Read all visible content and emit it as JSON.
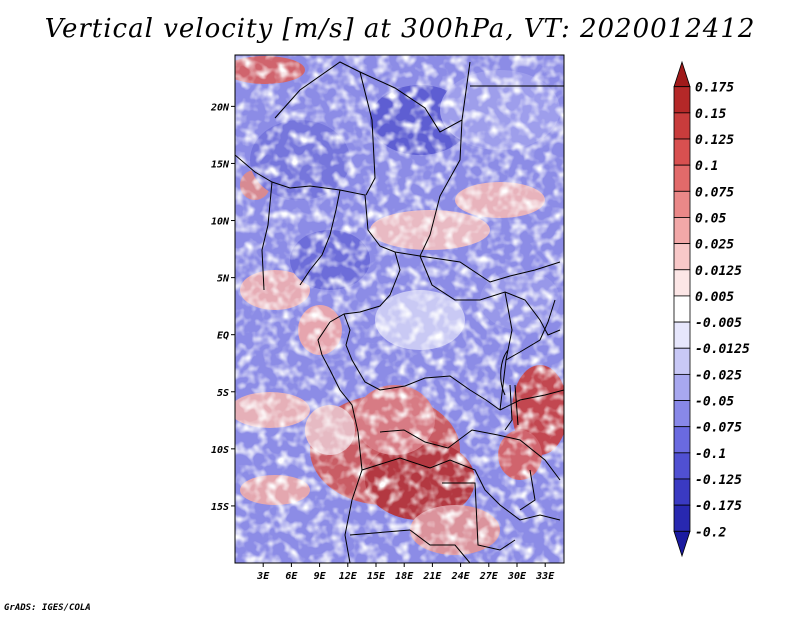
{
  "chart_data": {
    "type": "heatmap",
    "title": "Vertical velocity [m/s] at 300hPa, VT: 2020012412",
    "variable": "Vertical velocity",
    "units": "m/s",
    "level": "300hPa",
    "valid_time": "2020012412",
    "xlim": [
      0,
      35
    ],
    "ylim": [
      -20,
      24.5
    ],
    "x_ticks": [
      {
        "value": 3,
        "label": "3E"
      },
      {
        "value": 6,
        "label": "6E"
      },
      {
        "value": 9,
        "label": "9E"
      },
      {
        "value": 12,
        "label": "12E"
      },
      {
        "value": 15,
        "label": "15E"
      },
      {
        "value": 18,
        "label": "18E"
      },
      {
        "value": 21,
        "label": "21E"
      },
      {
        "value": 24,
        "label": "24E"
      },
      {
        "value": 27,
        "label": "27E"
      },
      {
        "value": 30,
        "label": "30E"
      },
      {
        "value": 33,
        "label": "33E"
      }
    ],
    "y_ticks": [
      {
        "value": 20,
        "label": "20N"
      },
      {
        "value": 15,
        "label": "15N"
      },
      {
        "value": 10,
        "label": "10N"
      },
      {
        "value": 5,
        "label": "5N"
      },
      {
        "value": 0,
        "label": "EQ"
      },
      {
        "value": -5,
        "label": "5S"
      },
      {
        "value": -10,
        "label": "10S"
      },
      {
        "value": -15,
        "label": "15S"
      }
    ],
    "colorbar": {
      "labels": [
        "0.175",
        "0.15",
        "0.125",
        "0.1",
        "0.075",
        "0.05",
        "0.025",
        "0.0125",
        "0.005",
        "-0.005",
        "-0.0125",
        "-0.025",
        "-0.05",
        "-0.075",
        "-0.1",
        "-0.125",
        "-0.175",
        "-0.2"
      ],
      "colors": [
        "#a01a1a",
        "#b42828",
        "#c83c3c",
        "#d85050",
        "#e26a6a",
        "#ea8888",
        "#f2a8a8",
        "#f8c8c8",
        "#fce6e6",
        "#ffffff",
        "#e6e6fc",
        "#c8c8f6",
        "#a8a8f0",
        "#8888e8",
        "#6a6ae0",
        "#5050d2",
        "#3a3ac2",
        "#2828b0",
        "#1a1aa0"
      ]
    }
  },
  "credit": "GrADS: IGES/COLA"
}
